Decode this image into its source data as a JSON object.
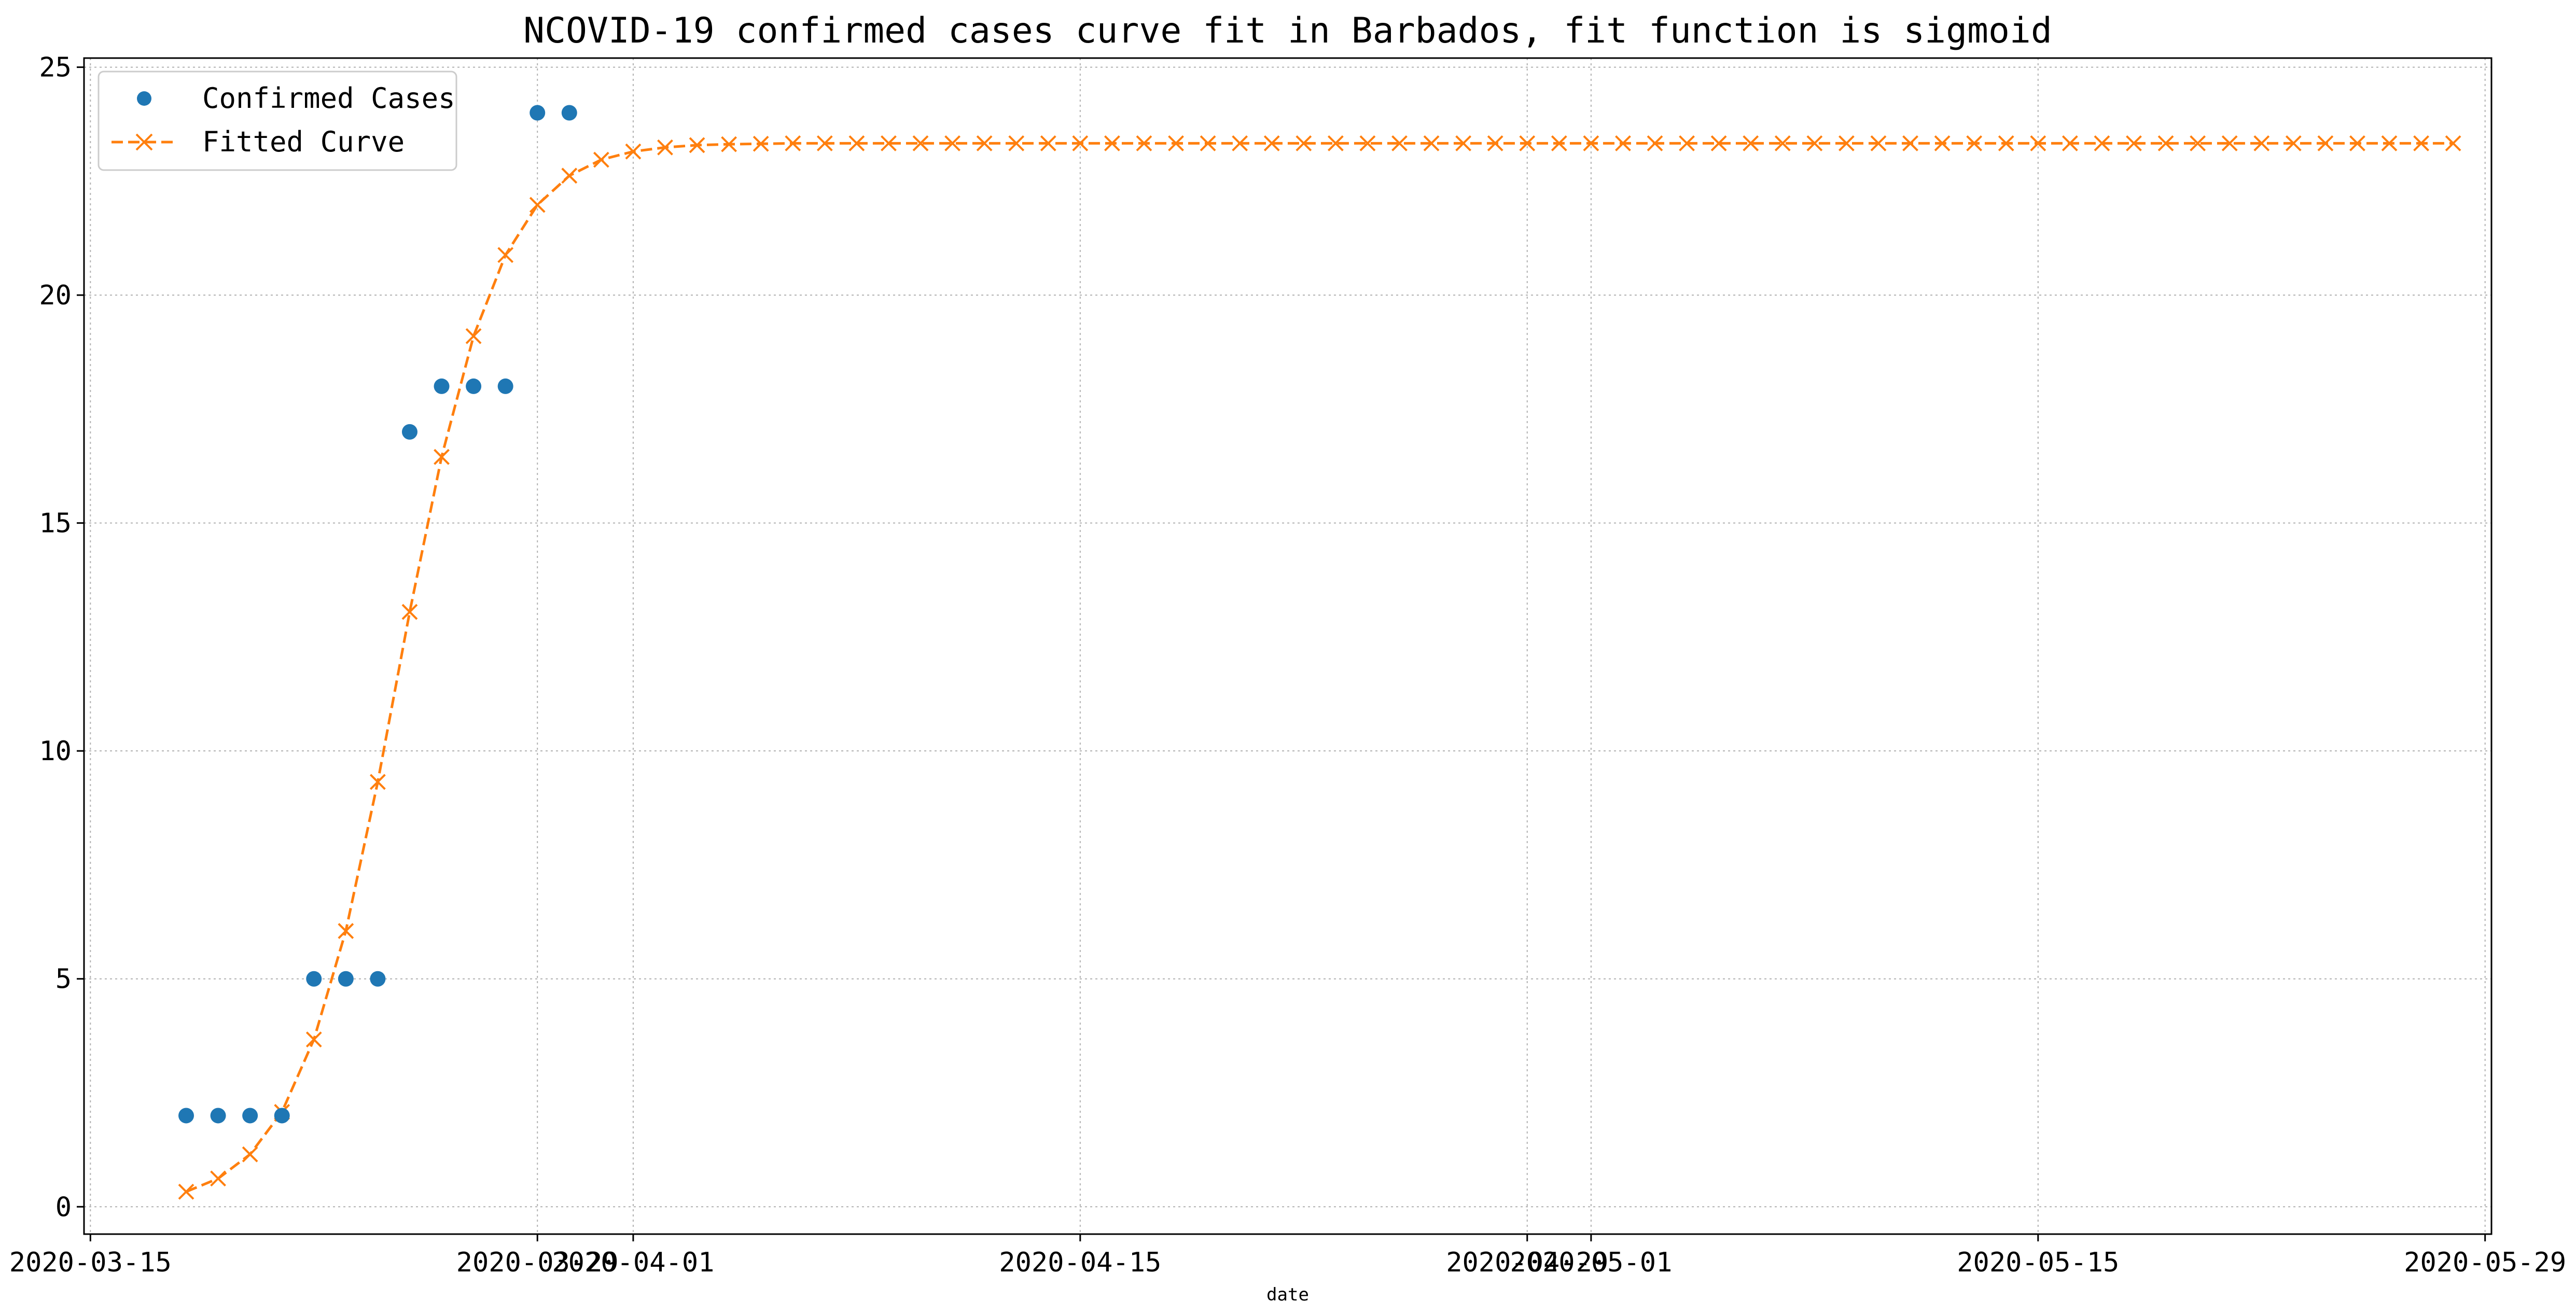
{
  "chart_data": {
    "type": "line",
    "title": "NCOVID-19 confirmed cases curve fit in Barbados, fit function is sigmoid",
    "xlabel": "date",
    "ylabel": "",
    "x_axis_kind": "date",
    "xlim": [
      "2020-03-15",
      "2020-05-29"
    ],
    "ylim": [
      -0.6,
      25.2
    ],
    "grid": true,
    "legend_position": "top-left",
    "x_ticks": [
      "2020-03-15",
      "2020-03-29",
      "2020-04-01",
      "2020-04-15",
      "2020-04-29",
      "2020-05-01",
      "2020-05-15",
      "2020-05-29"
    ],
    "y_ticks": [
      0,
      5,
      10,
      15,
      20,
      25
    ],
    "series": [
      {
        "name": "Confirmed Cases",
        "style": "markers",
        "color": "#1f77b4",
        "x": [
          "2020-03-18",
          "2020-03-19",
          "2020-03-20",
          "2020-03-21",
          "2020-03-22",
          "2020-03-23",
          "2020-03-24",
          "2020-03-25",
          "2020-03-26",
          "2020-03-27",
          "2020-03-28",
          "2020-03-29",
          "2020-03-30"
        ],
        "y": [
          2,
          2,
          2,
          2,
          5,
          5,
          5,
          17,
          18,
          18,
          18,
          24,
          24
        ]
      },
      {
        "name": "Fitted Curve",
        "style": "dashed-line-x-markers",
        "color": "#ff7f0e",
        "x_start": "2020-03-18",
        "x_step_days": 1,
        "y": [
          0.33,
          0.62,
          1.15,
          2.08,
          3.67,
          6.05,
          9.32,
          13.05,
          16.45,
          19.1,
          20.88,
          21.98,
          22.62,
          22.97,
          23.15,
          23.24,
          23.29,
          23.31,
          23.32,
          23.33,
          23.33,
          23.33,
          23.33,
          23.33,
          23.33,
          23.33,
          23.33,
          23.33,
          23.33,
          23.33,
          23.33,
          23.33,
          23.33,
          23.33,
          23.33,
          23.33,
          23.33,
          23.33,
          23.33,
          23.33,
          23.33,
          23.33,
          23.33,
          23.33,
          23.33,
          23.33,
          23.33,
          23.33,
          23.33,
          23.33,
          23.33,
          23.33,
          23.33,
          23.33,
          23.33,
          23.33,
          23.33,
          23.33,
          23.33,
          23.33,
          23.33,
          23.33,
          23.33,
          23.33,
          23.33,
          23.33,
          23.33,
          23.33,
          23.33,
          23.33,
          23.33,
          23.33
        ]
      }
    ]
  }
}
